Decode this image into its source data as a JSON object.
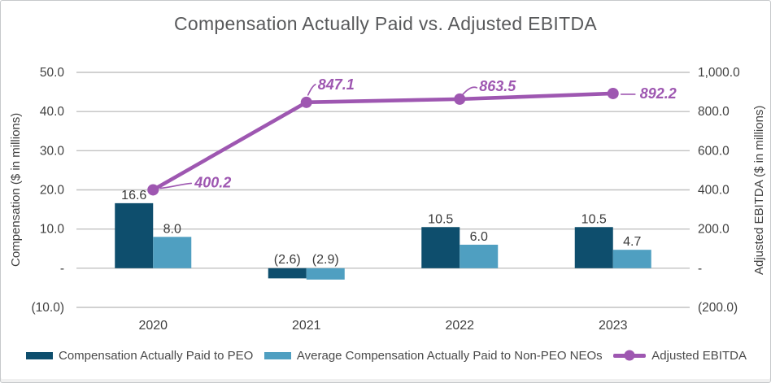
{
  "title": "Compensation Actually Paid vs. Adjusted EBITDA",
  "colors": {
    "grid": "#c2c2c2",
    "title_text": "#58595b",
    "tick_text": "#414141",
    "bar_label_text": "#3a3a3a",
    "peo_bar": "#0e4e6d",
    "non_peo_bar": "#4f9fc1",
    "ebitda_line": "#9e57b1"
  },
  "chart_data": {
    "type": "combo-bar-line",
    "title": "Compensation Actually Paid vs. Adjusted EBITDA",
    "categories": [
      "2020",
      "2021",
      "2022",
      "2023"
    ],
    "series": [
      {
        "name": "Compensation Actually Paid to PEO",
        "type": "bar",
        "axis": "left",
        "color": "#0e4e6d",
        "values": [
          16.6,
          -2.6,
          10.5,
          10.5
        ],
        "value_labels": [
          "16.6",
          "(2.6)",
          "10.5",
          "10.5"
        ]
      },
      {
        "name": "Average Compensation Actually Paid to Non-PEO NEOs",
        "type": "bar",
        "axis": "left",
        "color": "#4f9fc1",
        "values": [
          8.0,
          -2.9,
          6.0,
          4.7
        ],
        "value_labels": [
          "8.0",
          "(2.9)",
          "6.0",
          "4.7"
        ]
      },
      {
        "name": "Adjusted EBITDA",
        "type": "line",
        "axis": "right",
        "color": "#9e57b1",
        "values": [
          400.2,
          847.1,
          863.5,
          892.2
        ],
        "value_labels": [
          "400.2",
          "847.1",
          "863.5",
          "892.2"
        ]
      }
    ],
    "left_axis": {
      "label": "Compensation ($ in millions)",
      "range": [
        -10,
        50
      ],
      "tick_values": [
        50,
        40,
        30,
        20,
        10,
        0,
        -10
      ],
      "tick_labels": [
        "50.0",
        "40.0",
        "30.0",
        "20.0",
        "10.0",
        "-",
        "(10.0)"
      ]
    },
    "right_axis": {
      "label": "Adjusted EBITDA ($ in millions)",
      "range": [
        -200,
        1000
      ],
      "tick_values": [
        1000,
        800,
        600,
        400,
        200,
        0,
        -200
      ],
      "tick_labels": [
        "1,000.0",
        "800.0",
        "600.0",
        "400.0",
        "200.0",
        "-",
        "(200.0)"
      ]
    },
    "grid": true,
    "legend_position": "bottom"
  }
}
